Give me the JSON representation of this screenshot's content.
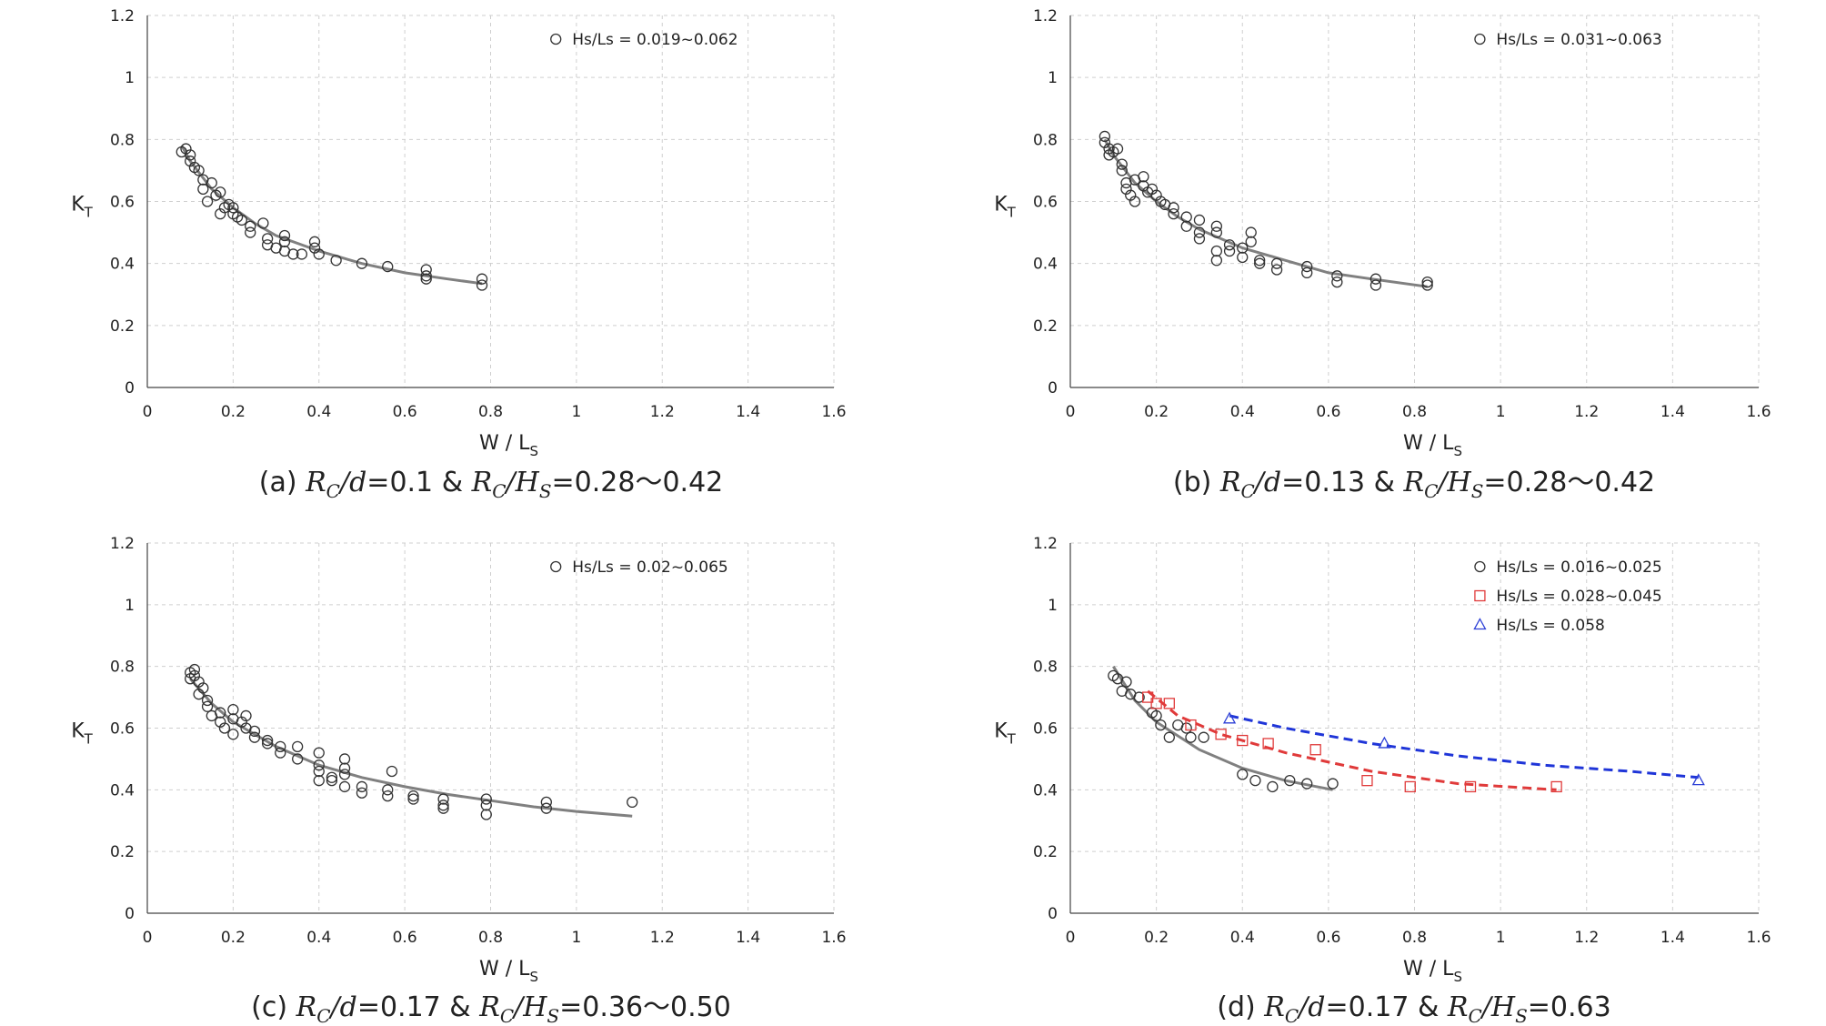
{
  "chart_data": [
    {
      "type": "scatter",
      "caption": {
        "label": "(a)",
        "rc_d": "0.1",
        "rc_hs": "0.28～0.42"
      },
      "xlabel": {
        "main": "W / L",
        "sub": "S"
      },
      "ylabel": {
        "main": "K",
        "sub": "T"
      },
      "xlim": [
        0,
        1.6
      ],
      "ylim": [
        0,
        1.2
      ],
      "xticks": [
        "0",
        "0.2",
        "0.4",
        "0.6",
        "0.8",
        "1",
        "1.2",
        "1.4",
        "1.6"
      ],
      "yticks": [
        "0",
        "0.2",
        "0.4",
        "0.6",
        "0.8",
        "1",
        "1.2"
      ],
      "grid": true,
      "legend_position": "top-right",
      "series": [
        {
          "name": "Hs/Ls = 0.019~0.062",
          "marker": "circle",
          "color": "#333333",
          "points": [
            [
              0.08,
              0.76
            ],
            [
              0.09,
              0.77
            ],
            [
              0.1,
              0.75
            ],
            [
              0.1,
              0.73
            ],
            [
              0.11,
              0.71
            ],
            [
              0.12,
              0.7
            ],
            [
              0.13,
              0.67
            ],
            [
              0.13,
              0.64
            ],
            [
              0.14,
              0.6
            ],
            [
              0.15,
              0.66
            ],
            [
              0.16,
              0.62
            ],
            [
              0.17,
              0.63
            ],
            [
              0.17,
              0.56
            ],
            [
              0.18,
              0.58
            ],
            [
              0.19,
              0.59
            ],
            [
              0.2,
              0.58
            ],
            [
              0.2,
              0.56
            ],
            [
              0.21,
              0.55
            ],
            [
              0.22,
              0.54
            ],
            [
              0.24,
              0.52
            ],
            [
              0.24,
              0.5
            ],
            [
              0.27,
              0.53
            ],
            [
              0.28,
              0.48
            ],
            [
              0.28,
              0.46
            ],
            [
              0.3,
              0.45
            ],
            [
              0.32,
              0.49
            ],
            [
              0.32,
              0.47
            ],
            [
              0.32,
              0.44
            ],
            [
              0.34,
              0.43
            ],
            [
              0.36,
              0.43
            ],
            [
              0.39,
              0.47
            ],
            [
              0.39,
              0.45
            ],
            [
              0.4,
              0.43
            ],
            [
              0.44,
              0.41
            ],
            [
              0.5,
              0.4
            ],
            [
              0.56,
              0.39
            ],
            [
              0.65,
              0.38
            ],
            [
              0.65,
              0.36
            ],
            [
              0.65,
              0.35
            ],
            [
              0.78,
              0.35
            ],
            [
              0.78,
              0.33
            ]
          ]
        }
      ],
      "fits": [
        {
          "x": [
            0.08,
            0.1,
            0.15,
            0.2,
            0.25,
            0.3,
            0.4,
            0.5,
            0.6,
            0.7,
            0.78
          ],
          "y": [
            0.78,
            0.73,
            0.64,
            0.58,
            0.53,
            0.49,
            0.44,
            0.4,
            0.37,
            0.35,
            0.335
          ],
          "color": "#808080",
          "dashed": false
        }
      ]
    },
    {
      "type": "scatter",
      "caption": {
        "label": "(b)",
        "rc_d": "0.13",
        "rc_hs": "0.28～0.42"
      },
      "xlabel": {
        "main": "W / L",
        "sub": "S"
      },
      "ylabel": {
        "main": "K",
        "sub": "T"
      },
      "xlim": [
        0,
        1.6
      ],
      "ylim": [
        0,
        1.2
      ],
      "xticks": [
        "0",
        "0.2",
        "0.4",
        "0.6",
        "0.8",
        "1",
        "1.2",
        "1.4",
        "1.6"
      ],
      "yticks": [
        "0",
        "0.2",
        "0.4",
        "0.6",
        "0.8",
        "1",
        "1.2"
      ],
      "grid": true,
      "legend_position": "top-right",
      "series": [
        {
          "name": "Hs/Ls = 0.031~0.063",
          "marker": "circle",
          "color": "#333333",
          "points": [
            [
              0.08,
              0.81
            ],
            [
              0.08,
              0.79
            ],
            [
              0.09,
              0.77
            ],
            [
              0.09,
              0.75
            ],
            [
              0.1,
              0.76
            ],
            [
              0.11,
              0.77
            ],
            [
              0.12,
              0.72
            ],
            [
              0.12,
              0.7
            ],
            [
              0.13,
              0.66
            ],
            [
              0.13,
              0.64
            ],
            [
              0.14,
              0.62
            ],
            [
              0.15,
              0.6
            ],
            [
              0.15,
              0.67
            ],
            [
              0.17,
              0.68
            ],
            [
              0.17,
              0.65
            ],
            [
              0.18,
              0.63
            ],
            [
              0.19,
              0.64
            ],
            [
              0.2,
              0.62
            ],
            [
              0.21,
              0.6
            ],
            [
              0.22,
              0.59
            ],
            [
              0.24,
              0.58
            ],
            [
              0.24,
              0.56
            ],
            [
              0.27,
              0.55
            ],
            [
              0.27,
              0.52
            ],
            [
              0.3,
              0.54
            ],
            [
              0.3,
              0.5
            ],
            [
              0.3,
              0.48
            ],
            [
              0.34,
              0.52
            ],
            [
              0.34,
              0.5
            ],
            [
              0.34,
              0.44
            ],
            [
              0.34,
              0.41
            ],
            [
              0.37,
              0.46
            ],
            [
              0.37,
              0.44
            ],
            [
              0.4,
              0.45
            ],
            [
              0.4,
              0.42
            ],
            [
              0.42,
              0.5
            ],
            [
              0.42,
              0.47
            ],
            [
              0.44,
              0.41
            ],
            [
              0.44,
              0.4
            ],
            [
              0.48,
              0.4
            ],
            [
              0.48,
              0.38
            ],
            [
              0.55,
              0.39
            ],
            [
              0.55,
              0.37
            ],
            [
              0.62,
              0.36
            ],
            [
              0.62,
              0.34
            ],
            [
              0.71,
              0.35
            ],
            [
              0.71,
              0.33
            ],
            [
              0.83,
              0.34
            ],
            [
              0.83,
              0.33
            ]
          ]
        }
      ],
      "fits": [
        {
          "x": [
            0.08,
            0.1,
            0.15,
            0.2,
            0.25,
            0.3,
            0.4,
            0.5,
            0.6,
            0.7,
            0.83
          ],
          "y": [
            0.8,
            0.75,
            0.66,
            0.6,
            0.55,
            0.51,
            0.45,
            0.41,
            0.37,
            0.35,
            0.325
          ],
          "color": "#808080",
          "dashed": false
        }
      ]
    },
    {
      "type": "scatter",
      "caption": {
        "label": "(c)",
        "rc_d": "0.17",
        "rc_hs": "0.36～0.50"
      },
      "xlabel": {
        "main": "W / L",
        "sub": "S"
      },
      "ylabel": {
        "main": "K",
        "sub": "T"
      },
      "xlim": [
        0,
        1.6
      ],
      "ylim": [
        0,
        1.2
      ],
      "xticks": [
        "0",
        "0.2",
        "0.4",
        "0.6",
        "0.8",
        "1",
        "1.2",
        "1.4",
        "1.6"
      ],
      "yticks": [
        "0",
        "0.2",
        "0.4",
        "0.6",
        "0.8",
        "1",
        "1.2"
      ],
      "grid": true,
      "legend_position": "top-right",
      "series": [
        {
          "name": "Hs/Ls = 0.02~0.065",
          "marker": "circle",
          "color": "#333333",
          "points": [
            [
              0.1,
              0.78
            ],
            [
              0.1,
              0.76
            ],
            [
              0.11,
              0.79
            ],
            [
              0.11,
              0.77
            ],
            [
              0.12,
              0.75
            ],
            [
              0.12,
              0.71
            ],
            [
              0.13,
              0.73
            ],
            [
              0.14,
              0.69
            ],
            [
              0.14,
              0.67
            ],
            [
              0.15,
              0.64
            ],
            [
              0.17,
              0.65
            ],
            [
              0.17,
              0.62
            ],
            [
              0.18,
              0.6
            ],
            [
              0.2,
              0.66
            ],
            [
              0.2,
              0.63
            ],
            [
              0.2,
              0.58
            ],
            [
              0.22,
              0.62
            ],
            [
              0.23,
              0.64
            ],
            [
              0.23,
              0.6
            ],
            [
              0.25,
              0.59
            ],
            [
              0.25,
              0.57
            ],
            [
              0.28,
              0.56
            ],
            [
              0.28,
              0.55
            ],
            [
              0.31,
              0.54
            ],
            [
              0.31,
              0.52
            ],
            [
              0.35,
              0.54
            ],
            [
              0.35,
              0.5
            ],
            [
              0.4,
              0.52
            ],
            [
              0.4,
              0.48
            ],
            [
              0.4,
              0.46
            ],
            [
              0.4,
              0.43
            ],
            [
              0.43,
              0.44
            ],
            [
              0.43,
              0.43
            ],
            [
              0.46,
              0.5
            ],
            [
              0.46,
              0.47
            ],
            [
              0.46,
              0.45
            ],
            [
              0.46,
              0.41
            ],
            [
              0.5,
              0.41
            ],
            [
              0.5,
              0.39
            ],
            [
              0.56,
              0.4
            ],
            [
              0.56,
              0.38
            ],
            [
              0.57,
              0.46
            ],
            [
              0.62,
              0.38
            ],
            [
              0.62,
              0.37
            ],
            [
              0.69,
              0.37
            ],
            [
              0.69,
              0.35
            ],
            [
              0.69,
              0.34
            ],
            [
              0.79,
              0.37
            ],
            [
              0.79,
              0.35
            ],
            [
              0.79,
              0.32
            ],
            [
              0.93,
              0.36
            ],
            [
              0.93,
              0.34
            ],
            [
              1.13,
              0.36
            ]
          ]
        }
      ],
      "fits": [
        {
          "x": [
            0.1,
            0.15,
            0.2,
            0.3,
            0.4,
            0.5,
            0.6,
            0.7,
            0.8,
            0.9,
            1.0,
            1.13
          ],
          "y": [
            0.76,
            0.68,
            0.62,
            0.54,
            0.48,
            0.44,
            0.41,
            0.385,
            0.365,
            0.345,
            0.33,
            0.315
          ],
          "color": "#808080",
          "dashed": false
        }
      ]
    },
    {
      "type": "scatter",
      "caption": {
        "label": "(d)",
        "rc_d": "0.17",
        "rc_hs": "0.63"
      },
      "xlabel": {
        "main": "W / L",
        "sub": "S"
      },
      "ylabel": {
        "main": "K",
        "sub": "T"
      },
      "xlim": [
        0,
        1.6
      ],
      "ylim": [
        0,
        1.2
      ],
      "xticks": [
        "0",
        "0.2",
        "0.4",
        "0.6",
        "0.8",
        "1",
        "1.2",
        "1.4",
        "1.6"
      ],
      "yticks": [
        "0",
        "0.2",
        "0.4",
        "0.6",
        "0.8",
        "1",
        "1.2"
      ],
      "grid": true,
      "legend_position": "top-right",
      "series": [
        {
          "name": "Hs/Ls = 0.016~0.025",
          "marker": "circle",
          "color": "#333333",
          "points": [
            [
              0.1,
              0.77
            ],
            [
              0.11,
              0.76
            ],
            [
              0.12,
              0.72
            ],
            [
              0.13,
              0.75
            ],
            [
              0.14,
              0.71
            ],
            [
              0.16,
              0.7
            ],
            [
              0.19,
              0.65
            ],
            [
              0.2,
              0.64
            ],
            [
              0.21,
              0.61
            ],
            [
              0.23,
              0.57
            ],
            [
              0.25,
              0.61
            ],
            [
              0.27,
              0.6
            ],
            [
              0.28,
              0.57
            ],
            [
              0.31,
              0.57
            ],
            [
              0.4,
              0.45
            ],
            [
              0.43,
              0.43
            ],
            [
              0.47,
              0.41
            ],
            [
              0.51,
              0.43
            ],
            [
              0.55,
              0.42
            ],
            [
              0.61,
              0.42
            ]
          ]
        },
        {
          "name": "Hs/Ls = 0.028~0.045",
          "marker": "square",
          "color": "#e03a3a",
          "points": [
            [
              0.18,
              0.7
            ],
            [
              0.2,
              0.68
            ],
            [
              0.23,
              0.68
            ],
            [
              0.28,
              0.61
            ],
            [
              0.35,
              0.58
            ],
            [
              0.4,
              0.56
            ],
            [
              0.46,
              0.55
            ],
            [
              0.57,
              0.53
            ],
            [
              0.69,
              0.43
            ],
            [
              0.79,
              0.41
            ],
            [
              0.93,
              0.41
            ],
            [
              1.13,
              0.41
            ]
          ]
        },
        {
          "name": "Hs/Ls = 0.058",
          "marker": "triangle",
          "color": "#2c3fd6",
          "points": [
            [
              0.37,
              0.63
            ],
            [
              0.73,
              0.55
            ],
            [
              1.46,
              0.43
            ]
          ]
        }
      ],
      "fits": [
        {
          "x": [
            0.1,
            0.15,
            0.2,
            0.3,
            0.4,
            0.5,
            0.61
          ],
          "y": [
            0.8,
            0.69,
            0.62,
            0.53,
            0.47,
            0.43,
            0.4
          ],
          "color": "#808080",
          "dashed": false
        },
        {
          "x": [
            0.18,
            0.25,
            0.35,
            0.5,
            0.7,
            0.9,
            1.13
          ],
          "y": [
            0.72,
            0.64,
            0.58,
            0.52,
            0.46,
            0.42,
            0.4
          ],
          "color": "#e03a3a",
          "dashed": true
        },
        {
          "x": [
            0.37,
            0.5,
            0.7,
            0.9,
            1.1,
            1.3,
            1.46
          ],
          "y": [
            0.64,
            0.6,
            0.55,
            0.51,
            0.48,
            0.46,
            0.44
          ],
          "color": "#1f35d8",
          "dashed": true
        }
      ]
    }
  ]
}
